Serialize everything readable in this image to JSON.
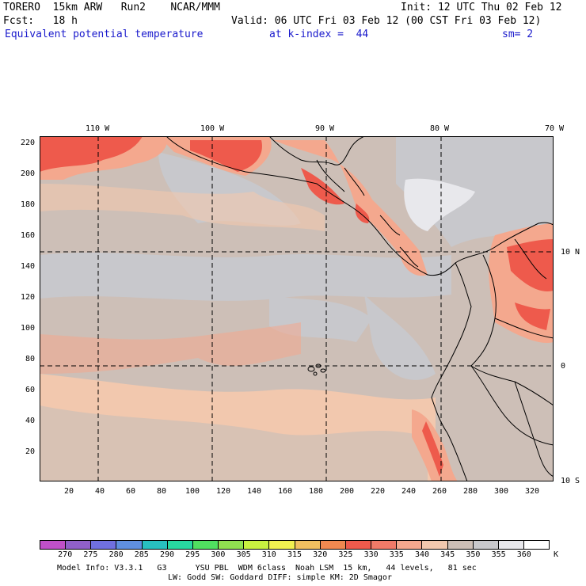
{
  "header": {
    "line1_left": "TORERO  15km ARW   Run2    NCAR/MMM",
    "line1_right": "Init: 12 UTC Thu 02 Feb 12",
    "line2_left": "Fcst:   18 h",
    "line2_right": "Valid: 06 UTC Fri 03 Feb 12 (00 CST Fri 03 Feb 12)",
    "field_name": "Equivalent potential temperature",
    "level": "at k-index =  44",
    "smoothing": "sm= 2"
  },
  "map": {
    "lon_labels": [
      "110 W",
      "100 W",
      "90 W",
      "80 W",
      "70 W"
    ],
    "lat_labels": [
      "10 N",
      "0",
      "10 S"
    ],
    "x_ticks": [
      "20",
      "40",
      "60",
      "80",
      "100",
      "120",
      "140",
      "160",
      "180",
      "200",
      "220",
      "240",
      "260",
      "280",
      "300",
      "320"
    ],
    "y_ticks": [
      "220",
      "200",
      "180",
      "160",
      "140",
      "120",
      "100",
      "80",
      "60",
      "40",
      "20"
    ],
    "background_color": "#cdbfb7"
  },
  "colorbar": {
    "unit": "K",
    "labels": [
      "270",
      "275",
      "280",
      "285",
      "290",
      "295",
      "300",
      "305",
      "310",
      "315",
      "320",
      "325",
      "330",
      "335",
      "340",
      "345",
      "350",
      "355",
      "360"
    ],
    "colors": [
      "#c050c8",
      "#9060c8",
      "#7070e0",
      "#5f8fe0",
      "#28c0c0",
      "#28d8a0",
      "#50e060",
      "#90e050",
      "#c8f040",
      "#f0f050",
      "#f0c060",
      "#f08850",
      "#ee5a4c",
      "#f07a68",
      "#f4a88e",
      "#f2c8ae",
      "#cdbfb7",
      "#c8c8cc",
      "#e8e8ec",
      "#ffffff"
    ]
  },
  "footer": {
    "line1": "Model Info: V3.3.1   G3      YSU PBL  WDM 6class  Noah LSM  15 km,   44 levels,   81 sec",
    "line2": "LW: Godd SW: Goddard DIFF: simple KM: 2D Smagor"
  }
}
